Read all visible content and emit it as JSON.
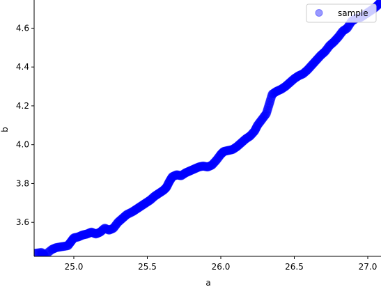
{
  "chart_data": {
    "type": "scatter",
    "title": "",
    "xlabel": "a",
    "ylabel": "b",
    "xlim": [
      24.73,
      27.09
    ],
    "ylim": [
      3.425,
      4.745
    ],
    "x_ticks": [
      25.0,
      25.5,
      26.0,
      26.5,
      27.0
    ],
    "x_tick_labels": [
      "25.0",
      "25.5",
      "26.0",
      "26.5",
      "27.0"
    ],
    "y_ticks": [
      3.6,
      3.8,
      4.0,
      4.2,
      4.4,
      4.6
    ],
    "y_tick_labels": [
      "3.6",
      "3.8",
      "4.0",
      "4.2",
      "4.4",
      "4.6"
    ],
    "grid": false,
    "legend": {
      "placement": "top-right",
      "entries": [
        "sample"
      ]
    },
    "series": [
      {
        "name": "sample",
        "color": "#0000ff",
        "alpha": 0.4,
        "marker": "circle",
        "points": [
          [
            24.73,
            3.44
          ],
          [
            24.78,
            3.445
          ],
          [
            24.8,
            3.43
          ],
          [
            24.85,
            3.46
          ],
          [
            24.88,
            3.47
          ],
          [
            24.92,
            3.475
          ],
          [
            24.96,
            3.48
          ],
          [
            24.98,
            3.5
          ],
          [
            25.0,
            3.52
          ],
          [
            25.03,
            3.525
          ],
          [
            25.06,
            3.535
          ],
          [
            25.09,
            3.54
          ],
          [
            25.12,
            3.55
          ],
          [
            25.15,
            3.54
          ],
          [
            25.18,
            3.55
          ],
          [
            25.21,
            3.57
          ],
          [
            25.24,
            3.56
          ],
          [
            25.27,
            3.57
          ],
          [
            25.3,
            3.6
          ],
          [
            25.33,
            3.62
          ],
          [
            25.36,
            3.64
          ],
          [
            25.4,
            3.655
          ],
          [
            25.43,
            3.67
          ],
          [
            25.46,
            3.685
          ],
          [
            25.49,
            3.7
          ],
          [
            25.52,
            3.715
          ],
          [
            25.55,
            3.735
          ],
          [
            25.58,
            3.75
          ],
          [
            25.61,
            3.765
          ],
          [
            25.63,
            3.78
          ],
          [
            25.65,
            3.81
          ],
          [
            25.67,
            3.835
          ],
          [
            25.7,
            3.845
          ],
          [
            25.73,
            3.84
          ],
          [
            25.76,
            3.855
          ],
          [
            25.79,
            3.865
          ],
          [
            25.82,
            3.875
          ],
          [
            25.85,
            3.885
          ],
          [
            25.88,
            3.89
          ],
          [
            25.91,
            3.885
          ],
          [
            25.94,
            3.895
          ],
          [
            25.97,
            3.92
          ],
          [
            26.0,
            3.95
          ],
          [
            26.02,
            3.965
          ],
          [
            26.05,
            3.97
          ],
          [
            26.08,
            3.975
          ],
          [
            26.11,
            3.99
          ],
          [
            26.14,
            4.01
          ],
          [
            26.17,
            4.03
          ],
          [
            26.2,
            4.045
          ],
          [
            26.23,
            4.07
          ],
          [
            26.25,
            4.1
          ],
          [
            26.28,
            4.13
          ],
          [
            26.31,
            4.16
          ],
          [
            26.33,
            4.21
          ],
          [
            26.35,
            4.26
          ],
          [
            26.38,
            4.275
          ],
          [
            26.41,
            4.285
          ],
          [
            26.44,
            4.3
          ],
          [
            26.47,
            4.32
          ],
          [
            26.5,
            4.34
          ],
          [
            26.53,
            4.355
          ],
          [
            26.56,
            4.365
          ],
          [
            26.59,
            4.385
          ],
          [
            26.62,
            4.41
          ],
          [
            26.65,
            4.435
          ],
          [
            26.68,
            4.46
          ],
          [
            26.71,
            4.48
          ],
          [
            26.74,
            4.51
          ],
          [
            26.77,
            4.53
          ],
          [
            26.8,
            4.555
          ],
          [
            26.83,
            4.585
          ],
          [
            26.86,
            4.6
          ],
          [
            26.89,
            4.635
          ],
          [
            26.92,
            4.65
          ],
          [
            26.95,
            4.655
          ],
          [
            26.98,
            4.67
          ],
          [
            27.01,
            4.685
          ],
          [
            27.04,
            4.7
          ],
          [
            27.07,
            4.72
          ],
          [
            27.09,
            4.735
          ]
        ]
      }
    ]
  }
}
